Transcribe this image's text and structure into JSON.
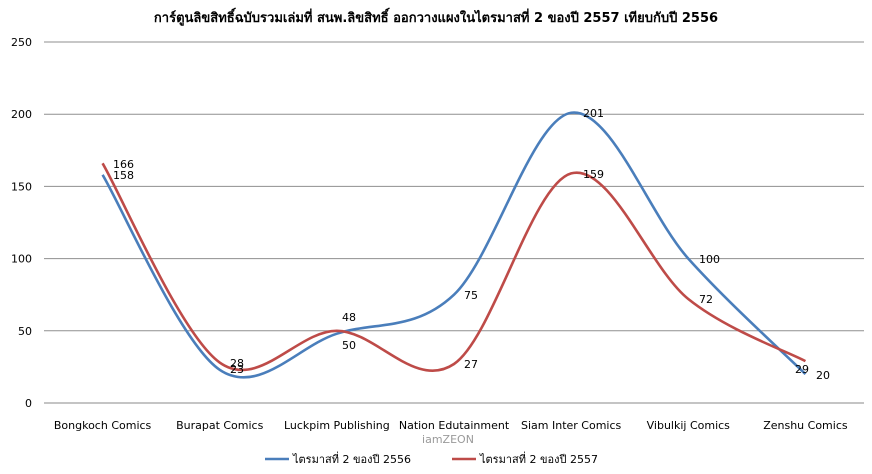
{
  "chart_data": {
    "type": "line",
    "title": "การ์ตูนลิขสิทธิ์ฉบับรวมเล่มที่ สนพ.ลิขสิทธิ์ ออกวางแผงในไตรมาสที่ 2 ของปี 2557 เทียบกับปี 2556",
    "categories": [
      "Bongkoch Comics",
      "Burapat Comics",
      "Luckpim Publishing",
      "Nation  Edutainment",
      "Siam Inter Comics",
      "Vibulkij Comics",
      "Zenshu Comics"
    ],
    "ylim": [
      0,
      250
    ],
    "yticks": [
      0,
      50,
      100,
      150,
      200,
      250
    ],
    "grid": true,
    "smooth": true,
    "legend_position": "bottom",
    "series": [
      {
        "name": "ไตรมาสที่ 2  ของปี 2556",
        "color": "#4a7ebb",
        "values": [
          158,
          23,
          48,
          75,
          201,
          100,
          20
        ]
      },
      {
        "name": "ไตรมาสที่ 2  ของปี 2557",
        "color": "#be4b48",
        "values": [
          166,
          28,
          50,
          27,
          159,
          72,
          29
        ]
      }
    ],
    "data_labels": [
      [
        "158",
        "23",
        "48",
        "75",
        "201",
        "100",
        "20"
      ],
      [
        "166",
        "28",
        "50",
        "27",
        "159",
        "72",
        "29"
      ]
    ]
  },
  "watermark": "iamZEON"
}
